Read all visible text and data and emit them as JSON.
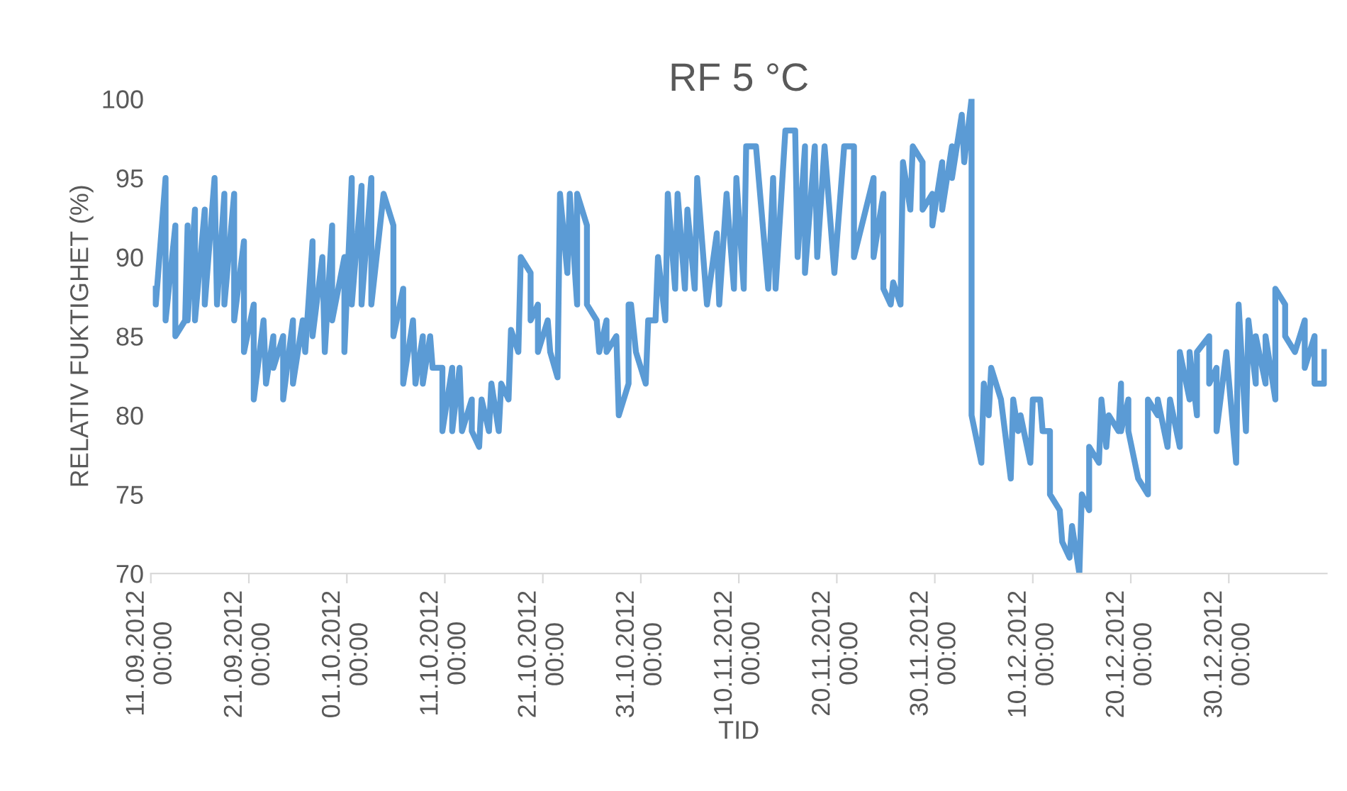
{
  "chart_data": {
    "type": "line",
    "title": "RF 5 °C",
    "xlabel": "TID",
    "ylabel": "RELATIV FUKTIGHET (%)",
    "ylim": [
      70,
      100
    ],
    "yticks": [
      70,
      75,
      80,
      85,
      90,
      95,
      100
    ],
    "xlim": [
      "2012-09-11",
      "2013-01-09"
    ],
    "xticks": [
      {
        "value": "2012-09-11",
        "label": "11.09.2012\n00:00"
      },
      {
        "value": "2012-09-21",
        "label": "21.09.2012\n00:00"
      },
      {
        "value": "2012-10-01",
        "label": "01.10.2012\n00:00"
      },
      {
        "value": "2012-10-11",
        "label": "11.10.2012\n00:00"
      },
      {
        "value": "2012-10-21",
        "label": "21.10.2012\n00:00"
      },
      {
        "value": "2012-10-31",
        "label": "31.10.2012\n00:00"
      },
      {
        "value": "2012-11-10",
        "label": "10.11.2012\n00:00"
      },
      {
        "value": "2012-11-20",
        "label": "20.11.2012\n00:00"
      },
      {
        "value": "2012-11-30",
        "label": "30.11.2012\n00:00"
      },
      {
        "value": "2012-12-10",
        "label": "10.12.2012\n00:00"
      },
      {
        "value": "2012-12-20",
        "label": "20.12.2012\n00:00"
      },
      {
        "value": "2012-12-30",
        "label": "30.12.2012\n00:00"
      }
    ],
    "grid": false,
    "marker": "none",
    "line_style": "solid",
    "series": [
      {
        "color": "#5b9bd5",
        "x": [
          "2012-09-11T12:00",
          "2012-09-11T12:00",
          "2012-09-12T12:00",
          "2012-09-12T12:00",
          "2012-09-13T12:00",
          "2012-09-13T12:00",
          "2012-09-14T12:00",
          "2012-09-14T18:00",
          "2012-09-14T18:00",
          "2012-09-15T12:00",
          "2012-09-15T12:00",
          "2012-09-16T12:00",
          "2012-09-16T12:00",
          "2012-09-17T12:00",
          "2012-09-17T18:00",
          "2012-09-18T12:00",
          "2012-09-18T12:00",
          "2012-09-19T12:00",
          "2012-09-19T12:00",
          "2012-09-20T12:00",
          "2012-09-20T12:00",
          "2012-09-21T12:00",
          "2012-09-21T12:00",
          "2012-09-22T12:00",
          "2012-09-22T18:00",
          "2012-09-23T12:00",
          "2012-09-23T12:00",
          "2012-09-24T12:00",
          "2012-09-24T12:00",
          "2012-09-25T12:00",
          "2012-09-25T12:00",
          "2012-09-26T12:00",
          "2012-09-26T18:00",
          "2012-09-27T12:00",
          "2012-09-27T12:00",
          "2012-09-28T12:00",
          "2012-09-28T18:00",
          "2012-09-29T12:00",
          "2012-09-29T12:00",
          "2012-09-30T18:00",
          "2012-09-30T18:00",
          "2012-10-01T12:00",
          "2012-10-01T12:00",
          "2012-10-02T12:00",
          "2012-10-02T12:00",
          "2012-10-03T12:00",
          "2012-10-03T12:00",
          "2012-10-04T18:00",
          "2012-10-05T18:00",
          "2012-10-05T18:00",
          "2012-10-06T18:00",
          "2012-10-06T18:00",
          "2012-10-07T18:00",
          "2012-10-08T00:00",
          "2012-10-08T18:00",
          "2012-10-08T18:00",
          "2012-10-09T12:00",
          "2012-10-09T18:00",
          "2012-10-10T18:00",
          "2012-10-10T18:00",
          "2012-10-11T18:00",
          "2012-10-11T18:00",
          "2012-10-12T12:00",
          "2012-10-12T18:00",
          "2012-10-13T18:00",
          "2012-10-13T18:00",
          "2012-10-14T12:00",
          "2012-10-14T18:00",
          "2012-10-15T12:00",
          "2012-10-15T18:00",
          "2012-10-16T12:00",
          "2012-10-16T18:00",
          "2012-10-17T12:00",
          "2012-10-17T18:00",
          "2012-10-18T12:00",
          "2012-10-18T18:00",
          "2012-10-19T18:00",
          "2012-10-19T18:00",
          "2012-10-20T12:00",
          "2012-10-20T12:00",
          "2012-10-21T12:00",
          "2012-10-21T18:00",
          "2012-10-22T12:00",
          "2012-10-22T18:00",
          "2012-10-23T12:00",
          "2012-10-23T18:00",
          "2012-10-24T12:00",
          "2012-10-24T12:00",
          "2012-10-25T12:00",
          "2012-10-25T12:00",
          "2012-10-26T12:00",
          "2012-10-26T18:00",
          "2012-10-27T12:00",
          "2012-10-27T12:00",
          "2012-10-28T12:00",
          "2012-10-28T18:00",
          "2012-10-29T18:00",
          "2012-10-29T18:00",
          "2012-10-30T00:00",
          "2012-10-30T12:00",
          "2012-10-31T12:00",
          "2012-10-31T18:00",
          "2012-11-01T12:00",
          "2012-11-01T18:00",
          "2012-11-02T12:00",
          "2012-11-02T18:00",
          "2012-11-03T12:00",
          "2012-11-03T18:00",
          "2012-11-04T12:00",
          "2012-11-04T18:00",
          "2012-11-05T12:00",
          "2012-11-05T18:00",
          "2012-11-06T18:00",
          "2012-11-07T18:00",
          "2012-11-08T00:00",
          "2012-11-08T18:00",
          "2012-11-09T12:00",
          "2012-11-09T18:00",
          "2012-11-10T12:00",
          "2012-11-10T18:00",
          "2012-11-11T18:00",
          "2012-11-13T00:00",
          "2012-11-13T12:00",
          "2012-11-13T18:00",
          "2012-11-14T18:00",
          "2012-11-15T18:00",
          "2012-11-16T00:00",
          "2012-11-16T18:00",
          "2012-11-16T18:00",
          "2012-11-17T18:00",
          "2012-11-18T00:00",
          "2012-11-18T18:00",
          "2012-11-19T18:00",
          "2012-11-20T18:00",
          "2012-11-21T18:00",
          "2012-11-21T18:00",
          "2012-11-23T18:00",
          "2012-11-23T18:00",
          "2012-11-24T18:00",
          "2012-11-24T18:00",
          "2012-11-25T12:00",
          "2012-11-25T18:00",
          "2012-11-26T12:00",
          "2012-11-26T18:00",
          "2012-11-27T12:00",
          "2012-11-27T18:00",
          "2012-11-28T18:00",
          "2012-11-28T18:00",
          "2012-11-29T18:00",
          "2012-11-29T18:00",
          "2012-11-30T18:00",
          "2012-11-30T18:00",
          "2012-12-01T18:00",
          "2012-12-01T18:00",
          "2012-12-02T18:00",
          "2012-12-03T00:00",
          "2012-12-03T18:00",
          "2012-12-03T18:00",
          "2012-12-04T18:00",
          "2012-12-05T00:00",
          "2012-12-05T12:00",
          "2012-12-05T18:00",
          "2012-12-06T18:00",
          "2012-12-07T18:00",
          "2012-12-08T00:00",
          "2012-12-08T12:00",
          "2012-12-08T18:00",
          "2012-12-09T18:00",
          "2012-12-10T00:00",
          "2012-12-10T18:00",
          "2012-12-11T00:00",
          "2012-12-11T18:00",
          "2012-12-11T18:00",
          "2012-12-12T18:00",
          "2012-12-13T00:00",
          "2012-12-13T18:00",
          "2012-12-14T00:00",
          "2012-12-14T06:00",
          "2012-12-14T18:00",
          "2012-12-15T00:00",
          "2012-12-15T18:00",
          "2012-12-15T18:00",
          "2012-12-16T18:00",
          "2012-12-17T00:00",
          "2012-12-17T12:00",
          "2012-12-17T18:00",
          "2012-12-18T18:00",
          "2012-12-19T00:00",
          "2012-12-19T00:00",
          "2012-12-19T18:00",
          "2012-12-19T18:00",
          "2012-12-20T18:00",
          "2012-12-21T18:00",
          "2012-12-21T18:00",
          "2012-12-22T18:00",
          "2012-12-22T18:00",
          "2012-12-23T18:00",
          "2012-12-24T00:00",
          "2012-12-25T00:00",
          "2012-12-25T00:00",
          "2012-12-26T00:00",
          "2012-12-26T00:00",
          "2012-12-26T18:00",
          "2012-12-26T18:00",
          "2012-12-28T00:00",
          "2012-12-28T00:00",
          "2012-12-28T18:00",
          "2012-12-28T18:00",
          "2012-12-29T18:00",
          "2012-12-30T18:00",
          "2012-12-31T00:00",
          "2012-12-31T18:00",
          "2013-01-01T00:00",
          "2013-01-01T18:00",
          "2013-01-01T18:00",
          "2013-01-02T18:00",
          "2013-01-02T18:00",
          "2013-01-03T18:00",
          "2013-01-03T18:00",
          "2013-01-04T18:00",
          "2013-01-04T18:00",
          "2013-01-05T18:00",
          "2013-01-06T18:00",
          "2013-01-06T18:00",
          "2013-01-07T18:00",
          "2013-01-07T18:00",
          "2013-01-08T18:00",
          "2013-01-08T18:00"
        ],
        "values": [
          88,
          87,
          95,
          86,
          92,
          85,
          86,
          92,
          86,
          93,
          86,
          93,
          87,
          95,
          87,
          94,
          87,
          94,
          86,
          91,
          84,
          87,
          81,
          86,
          82,
          85,
          83,
          85,
          81,
          86,
          82,
          86,
          84,
          91,
          85,
          90,
          84,
          92,
          86,
          90,
          84,
          95,
          87,
          94.5,
          87,
          95,
          87,
          94,
          92,
          85,
          88,
          82,
          86,
          82,
          85,
          82,
          85,
          83,
          83,
          79,
          83,
          79,
          83,
          79,
          81,
          79,
          78,
          81,
          79,
          82,
          79,
          82,
          81,
          85.4,
          84,
          90,
          89,
          86,
          87,
          84,
          86,
          84,
          82.4,
          94,
          89,
          94,
          87,
          94,
          92,
          87,
          86,
          84,
          86,
          84,
          85,
          80,
          82,
          87,
          87,
          84,
          82,
          86,
          86,
          90,
          86,
          94,
          88,
          94,
          88,
          93,
          88,
          95,
          87,
          91.5,
          87,
          94,
          88,
          95,
          88,
          97,
          97,
          88,
          95,
          88,
          98,
          98,
          90,
          97,
          89,
          97,
          90,
          97,
          89,
          97,
          97,
          90,
          95,
          90,
          94,
          88,
          87,
          88.4,
          87,
          96,
          93,
          97,
          96,
          93,
          94,
          92,
          96,
          93,
          97,
          95,
          99,
          96,
          100,
          80,
          77,
          82,
          80,
          83,
          81,
          76,
          81,
          79,
          80,
          77,
          81,
          81,
          79,
          79,
          75,
          74,
          72,
          71,
          73,
          72,
          70,
          75,
          74,
          78,
          77,
          81,
          78,
          80,
          79,
          82,
          79,
          81,
          79,
          76,
          75,
          81,
          80,
          81,
          78,
          81,
          78,
          84,
          81,
          84,
          80,
          84,
          85,
          82,
          83,
          79,
          84,
          77,
          87,
          79,
          86,
          82,
          85,
          82,
          85,
          81,
          88,
          87,
          85,
          84,
          86,
          83,
          85,
          82,
          82,
          84
        ]
      }
    ]
  }
}
